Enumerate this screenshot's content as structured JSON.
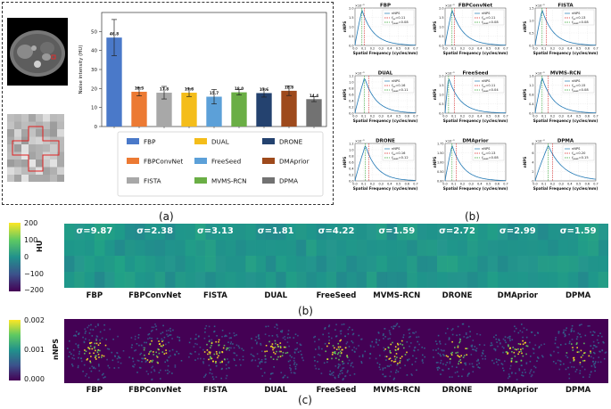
{
  "methods": [
    "FBP",
    "FBPConvNet",
    "FISTA",
    "DUAL",
    "FreeSeed",
    "MVMS-RCN",
    "DRONE",
    "DMAprior",
    "DPMA"
  ],
  "colors": {
    "FBP": "#4a79c9",
    "FBPConvNet": "#ec7a33",
    "FISTA": "#a8a8a8",
    "DUAL": "#f4bd1a",
    "FreeSeed": "#5ca0d8",
    "MVMS-RCN": "#6aae45",
    "DRONE": "#24426f",
    "DMAprior": "#9e4a1c",
    "DPMA": "#727272"
  },
  "captions": {
    "a": "(a)",
    "b_top": "(b)",
    "b_mid": "(b)",
    "c": "(c)"
  },
  "noise_chart": {
    "chart_data": {
      "type": "bar",
      "ylabel": "Noise intensity (HU)",
      "ylim": [
        0,
        60
      ],
      "yticks": [
        0,
        10,
        20,
        30,
        40,
        50
      ],
      "categories": [
        "FBP",
        "FBPConvNet",
        "FISTA",
        "DUAL",
        "FreeSeed",
        "MVMS-RCN",
        "DRONE",
        "DMAprior",
        "DPMA"
      ],
      "values": [
        46.8,
        18.3,
        17.8,
        17.8,
        15.7,
        18.0,
        17.6,
        18.8,
        14.4
      ],
      "errors": [
        9.5,
        2.2,
        3.3,
        2.0,
        3.8,
        1.4,
        2.1,
        2.5,
        1.3
      ],
      "value_labels": [
        "46.8",
        "18.3",
        "17.8",
        "17.8",
        "15.7",
        "18.0",
        "17.6",
        "18.8",
        "14.4"
      ],
      "legend_order": [
        "FBP",
        "DUAL",
        "DRONE",
        "FBPConvNet",
        "FreeSeed",
        "DMAprior",
        "FISTA",
        "MVMS-RCN",
        "DPMA"
      ]
    }
  },
  "nps_plots": {
    "chart_data": [
      {
        "type": "line",
        "title": "FBP",
        "f_av": "0.11",
        "f_peak": "0.08",
        "ymax": 2.0,
        "yticks": [
          "0.0",
          "0.5",
          "1.0",
          "1.5",
          "2.0"
        ],
        "exp": "×10⁻⁵"
      },
      {
        "type": "line",
        "title": "FBPConvNet",
        "f_av": "0.11",
        "f_peak": "0.08",
        "ymax": 2.0,
        "yticks": [
          "0.0",
          "0.5",
          "1.0",
          "1.5",
          "2.0"
        ],
        "exp": "×10⁻⁵"
      },
      {
        "type": "line",
        "title": "FISTA",
        "f_av": "0.13",
        "f_peak": "0.08",
        "ymax": 1.75,
        "yticks": [
          "0.0",
          "0.5",
          "1.0",
          "1.5"
        ],
        "exp": "×10⁻⁵"
      },
      {
        "type": "line",
        "title": "DUAL",
        "f_av": "0.16",
        "f_peak": "0.11",
        "ymax": 1.2,
        "yticks": [
          "0.0",
          "0.2",
          "0.4",
          "0.6",
          "0.8",
          "1.0",
          "1.2"
        ],
        "exp": "×10⁻⁵"
      },
      {
        "type": "line",
        "title": "FreeSeed",
        "f_av": "0.11",
        "f_peak": "0.04",
        "ymax": 2.0,
        "yticks": [
          "0.0",
          "0.5",
          "1.0",
          "1.5",
          "2.0"
        ],
        "exp": "×10⁻⁵"
      },
      {
        "type": "line",
        "title": "MVMS-RCN",
        "f_av": "0.15",
        "f_peak": "0.08",
        "ymax": 1.6,
        "yticks": [
          "0.0",
          "0.4",
          "0.8",
          "1.2",
          "1.6"
        ],
        "exp": "×10⁻⁵"
      },
      {
        "type": "line",
        "title": "DRONE",
        "f_av": "0.16",
        "f_peak": "0.12",
        "ymax": 1.2,
        "yticks": [
          "0.0",
          "0.2",
          "0.4",
          "0.6",
          "0.8",
          "1.0",
          "1.2"
        ],
        "exp": "×10⁻⁵"
      },
      {
        "type": "line",
        "title": "DMAprior",
        "f_av": "0.13",
        "f_peak": "0.08",
        "ymax": 1.75,
        "yticks": [
          "0.00",
          "0.50",
          "1.00",
          "1.50",
          "1.75"
        ],
        "exp": "×10⁻⁵"
      },
      {
        "type": "line",
        "title": "DPMA",
        "f_av": "0.20",
        "f_peak": "0.15",
        "ymax": 8,
        "yticks": [
          "0",
          "2",
          "4",
          "6",
          "8"
        ],
        "exp": "×10⁻⁶"
      }
    ],
    "xlabel": "Spatial Frequency (cycles/mm)",
    "ylabel": "nNPS",
    "xticks": [
      "0.0",
      "0.1",
      "0.2",
      "0.3",
      "0.4",
      "0.5",
      "0.6",
      "0.7"
    ],
    "legend_nnps": "nNPS",
    "legend_fav_prefix": "f",
    "legend_fav_sub": "av",
    "legend_fpeak_sub": "peak"
  },
  "sigma_strip": {
    "sigmas": [
      "σ=9.87",
      "σ=2.38",
      "σ=3.13",
      "σ=1.81",
      "σ=4.22",
      "σ=1.59",
      "σ=2.72",
      "σ=2.99",
      "σ=1.59"
    ],
    "colorbar_title": "HU",
    "colorbar_ticks": [
      "200",
      "100",
      "0",
      "−100",
      "−200"
    ]
  },
  "nps_strip": {
    "colorbar_title": "nNPS",
    "colorbar_ticks": [
      "0.002",
      "0.001",
      "0.000"
    ]
  }
}
